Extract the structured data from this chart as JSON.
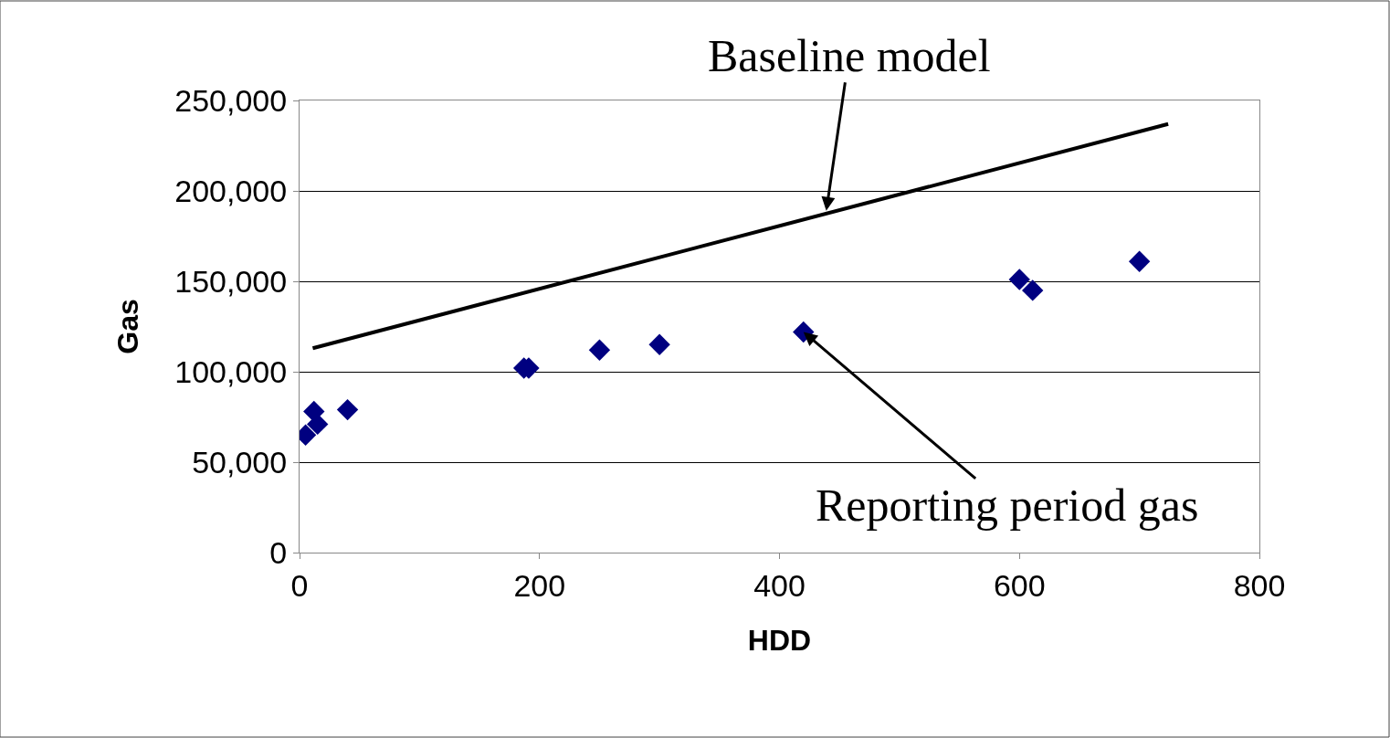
{
  "chart_data": {
    "type": "scatter",
    "xlabel": "HDD",
    "ylabel": "Gas",
    "xlim": [
      0,
      800
    ],
    "xticks": [
      0,
      200,
      400,
      600,
      800
    ],
    "ylim": [
      0,
      250000
    ],
    "yticks": [
      {
        "value": 0,
        "label": "0"
      },
      {
        "value": 50000,
        "label": "50,000"
      },
      {
        "value": 100000,
        "label": "100,000"
      },
      {
        "value": 150000,
        "label": "150,000"
      },
      {
        "value": 200000,
        "label": "200,000"
      },
      {
        "value": 250000,
        "label": "250,000"
      }
    ],
    "grid": "y",
    "series": [
      {
        "marker": "diamond",
        "color": "#000080",
        "x": [
          5,
          12,
          15,
          40,
          187,
          191,
          250,
          300,
          420,
          600,
          611,
          700
        ],
        "values": [
          65000,
          78000,
          71000,
          79000,
          102000,
          102000,
          112000,
          115000,
          122000,
          151000,
          145000,
          161000
        ]
      },
      {
        "type": "line",
        "color": "#000000",
        "x": [
          11,
          724
        ],
        "values": [
          113000,
          237000
        ]
      }
    ],
    "annotations": [
      {
        "text": "Baseline model",
        "x": 439,
        "y": 189000
      },
      {
        "text": "Reporting period gas",
        "x": 420,
        "y": 122000
      }
    ]
  }
}
